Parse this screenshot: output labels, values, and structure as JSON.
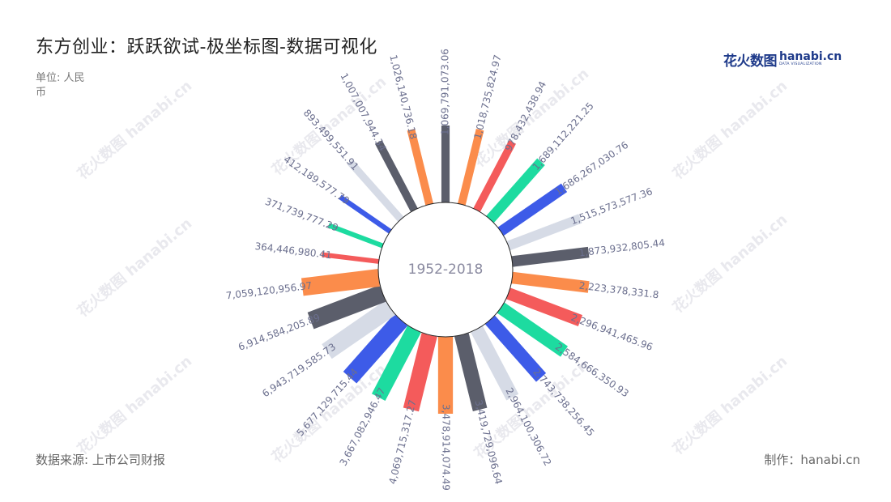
{
  "header": {
    "title": "东方创业：跃跃欲试-极坐标图-数据可视化",
    "unit": "单位: 人民币"
  },
  "logo": {
    "cn": "花火数图",
    "en": "hanabi.cn",
    "sub": "DATA VISUALIZATION"
  },
  "footer": {
    "source": "数据来源: 上市公司财报",
    "maker": "制作：hanabi.cn"
  },
  "colors": {
    "palette": [
      "#5b5e6b",
      "#fb8c4b",
      "#f45b5b",
      "#1ddba0",
      "#3d5be8",
      "#d6dbe6"
    ],
    "label": "#6b6f8e",
    "center_text": "#8a8aa0"
  },
  "chart_data": {
    "type": "bar",
    "subtype": "polar-radial-bar",
    "center_label": "1952-2018",
    "series": [
      {
        "values": [
          1069791073.06,
          1018735824.97,
          978432438.94,
          1689112221.25,
          1686267030.76,
          1515573577.36,
          1873932805.44,
          2223378331.8,
          2296941465.96,
          2584666350.93,
          2743738256.45,
          2964100306.72,
          3419729096.64,
          3478914074.49,
          4069715317.27,
          3667082946.47,
          5677129715.44,
          6943719585.73,
          6914584205.89,
          7059120956.97,
          364446980.41,
          371739777.29,
          412189577.79,
          893499551.91,
          1007007944.34,
          1026140736.18
        ],
        "labels": [
          "1,069,791,073.06",
          "1,018,735,824.97",
          "978,432,438.94",
          "1,689,112,221.25",
          "1,686,267,030.76",
          "1,515,573,577.36",
          "1,873,932,805.44",
          "2,223,378,331.8",
          "2,296,941,465.96",
          "2,584,666,350.93",
          "2,743,738,256.45",
          "2,964,100,306.72",
          "3,419,729,096.64",
          "3,478,914,074.49",
          "4,069,715,317.27",
          "3,667,082,946.47",
          "5,677,129,715.44",
          "6,943,719,585.73",
          "6,914,584,205.89",
          "7,059,120,956.97",
          "364,446,980.41",
          "371,739,777.29",
          "412,189,577.79",
          "893,499,551.91",
          "1,007,007,944.34",
          "1,026,140,736.18"
        ]
      }
    ]
  }
}
